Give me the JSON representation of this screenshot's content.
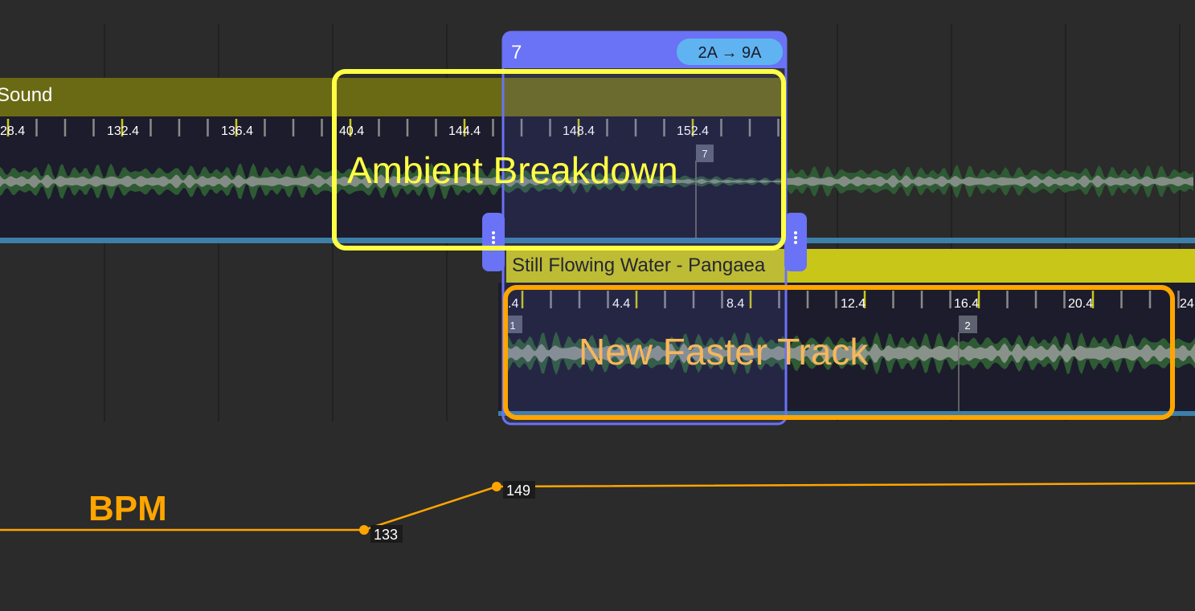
{
  "track_a": {
    "title": "Sound",
    "beat_labels": [
      "28.4",
      "132.4",
      "136.4",
      "40.4",
      "144.4",
      "148.4",
      "152.4"
    ],
    "cue": "7"
  },
  "transition": {
    "number": "7",
    "key_change": "2A → 9A"
  },
  "track_b": {
    "title": "Still Flowing Water - Pangaea",
    "beat_labels": [
      ".4",
      "4.4",
      "8.4",
      "12.4",
      "16.4",
      "20.4",
      "24"
    ],
    "cues": [
      "1",
      "2"
    ]
  },
  "annotations": {
    "ambient": "Ambient Breakdown",
    "new_track": "New Faster Track",
    "bpm": "BPM"
  },
  "bpm_points": [
    "133",
    "149"
  ]
}
